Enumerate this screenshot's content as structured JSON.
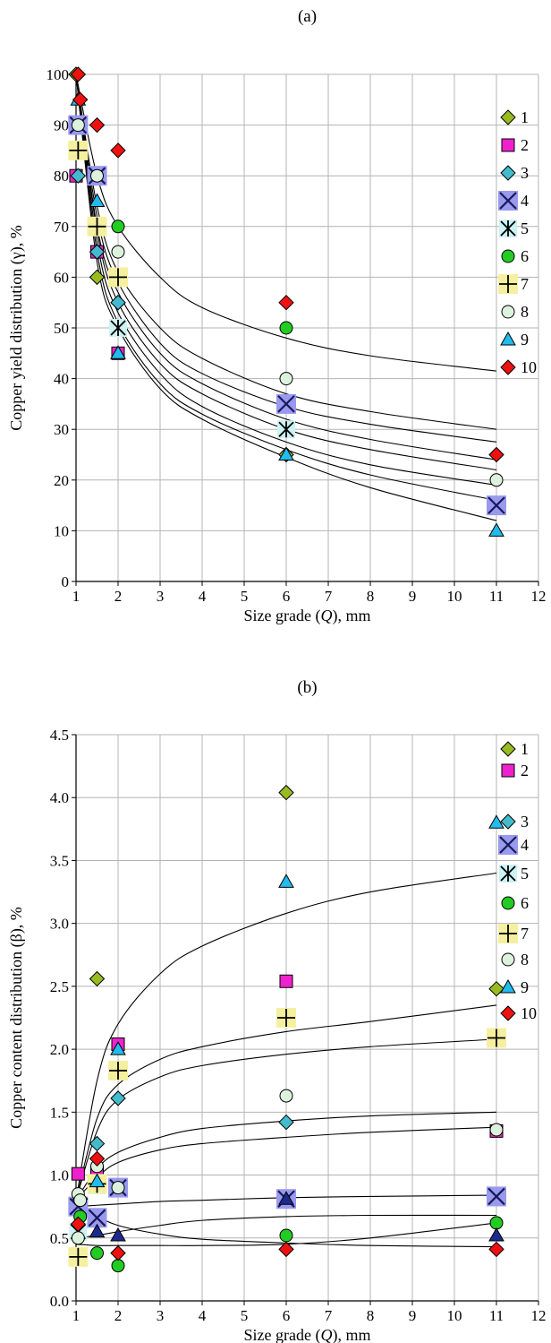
{
  "chart_data": [
    {
      "type": "scatter",
      "title": "(a)",
      "xlabel": "Size grade (Q), mm",
      "ylabel": "Copper yield distribution (γ), %",
      "xlim": [
        1,
        12
      ],
      "ylim": [
        0,
        100
      ],
      "xticks": [
        "1",
        "2",
        "3",
        "4",
        "5",
        "6",
        "7",
        "8",
        "9",
        "10",
        "11",
        "12"
      ],
      "yticks": [
        "0",
        "10",
        "20",
        "30",
        "40",
        "50",
        "60",
        "70",
        "80",
        "90",
        "100"
      ],
      "grid": true,
      "legend_position": "right",
      "series": [
        {
          "name": "1",
          "marker": "diamond",
          "color": "#99bb22",
          "x": [
            1,
            1.5,
            2,
            6
          ],
          "y": [
            100,
            60,
            55,
            25
          ]
        },
        {
          "name": "2",
          "marker": "square",
          "color": "#ee22cc",
          "x": [
            1,
            1.5,
            2,
            11
          ],
          "y": [
            80,
            65,
            45,
            15
          ]
        },
        {
          "name": "3",
          "marker": "diamond",
          "color": "#44bbcc",
          "x": [
            1.05,
            1.5,
            2
          ],
          "y": [
            80,
            65,
            55
          ]
        },
        {
          "name": "4",
          "marker": "x",
          "color": "#9999ee",
          "x": [
            1.05,
            1.5,
            6,
            11
          ],
          "y": [
            90,
            80,
            35,
            15
          ]
        },
        {
          "name": "5",
          "marker": "star",
          "color": "#ccf2f2",
          "x": [
            1.5,
            2,
            6
          ],
          "y": [
            70,
            50,
            30
          ]
        },
        {
          "name": "6",
          "marker": "circle",
          "color": "#22cc22",
          "x": [
            2,
            6
          ],
          "y": [
            70,
            50
          ]
        },
        {
          "name": "7",
          "marker": "plus",
          "color": "#f5f0a0",
          "x": [
            1.05,
            1.5,
            2
          ],
          "y": [
            85,
            70,
            60
          ]
        },
        {
          "name": "8",
          "marker": "circle",
          "color": "#ddf2dd",
          "x": [
            1.05,
            1.5,
            2,
            6,
            11
          ],
          "y": [
            90,
            80,
            65,
            40,
            20
          ]
        },
        {
          "name": "9",
          "marker": "triangle",
          "color": "#22bbee",
          "x": [
            1.05,
            1.5,
            2,
            6,
            11
          ],
          "y": [
            95,
            75,
            45,
            25,
            10
          ]
        },
        {
          "name": "10",
          "marker": "diamond",
          "color": "#ee1111",
          "x": [
            1.05,
            1.1,
            1.5,
            2,
            6,
            11
          ],
          "y": [
            100,
            95,
            90,
            85,
            55,
            25
          ]
        }
      ],
      "fit_curves": [
        [
          [
            1,
            100
          ],
          [
            1.5,
            80
          ],
          [
            2,
            70
          ],
          [
            3,
            60
          ],
          [
            4,
            54
          ],
          [
            6,
            48
          ],
          [
            8,
            44.5
          ],
          [
            11,
            41.5
          ]
        ],
        [
          [
            1,
            100
          ],
          [
            1.5,
            74
          ],
          [
            2,
            61
          ],
          [
            3,
            50
          ],
          [
            4,
            44
          ],
          [
            6,
            37
          ],
          [
            8,
            33.5
          ],
          [
            11,
            30
          ]
        ],
        [
          [
            1,
            100
          ],
          [
            1.5,
            72
          ],
          [
            2,
            59
          ],
          [
            3,
            47
          ],
          [
            4,
            41
          ],
          [
            6,
            34.5
          ],
          [
            8,
            31
          ],
          [
            11,
            27.5
          ]
        ],
        [
          [
            1,
            100
          ],
          [
            1.5,
            70
          ],
          [
            2,
            57
          ],
          [
            3,
            45
          ],
          [
            4,
            39
          ],
          [
            6,
            32
          ],
          [
            8,
            28
          ],
          [
            11,
            24
          ]
        ],
        [
          [
            1,
            100
          ],
          [
            1.5,
            69
          ],
          [
            2,
            55
          ],
          [
            3,
            43
          ],
          [
            4,
            37
          ],
          [
            6,
            30
          ],
          [
            8,
            26
          ],
          [
            11,
            22
          ]
        ],
        [
          [
            1,
            100
          ],
          [
            1.5,
            67
          ],
          [
            2,
            53
          ],
          [
            3,
            41
          ],
          [
            4,
            34.5
          ],
          [
            6,
            27.5
          ],
          [
            8,
            23
          ],
          [
            11,
            19
          ]
        ],
        [
          [
            1,
            100
          ],
          [
            1.5,
            65
          ],
          [
            2,
            51
          ],
          [
            3,
            39
          ],
          [
            4,
            33
          ],
          [
            6,
            26
          ],
          [
            8,
            21
          ],
          [
            11,
            16
          ]
        ],
        [
          [
            1,
            100
          ],
          [
            1.5,
            63
          ],
          [
            2,
            50
          ],
          [
            3,
            38
          ],
          [
            4,
            32
          ],
          [
            6,
            24.5
          ],
          [
            8,
            18.5
          ],
          [
            11,
            12
          ]
        ]
      ]
    },
    {
      "type": "scatter",
      "title": "(b)",
      "xlabel": "Size grade (Q), mm",
      "ylabel": "Copper content distribution (β), %",
      "xlim": [
        1,
        12
      ],
      "ylim": [
        0,
        4.5
      ],
      "xticks": [
        "1",
        "2",
        "3",
        "4",
        "5",
        "6",
        "7",
        "8",
        "9",
        "10",
        "11",
        "12"
      ],
      "yticks": [
        "0.0",
        "0.5",
        "1.0",
        "1.5",
        "2.0",
        "2.5",
        "3.0",
        "3.5",
        "4.0",
        "4.5"
      ],
      "grid": true,
      "legend_position": "right",
      "series": [
        {
          "name": "1",
          "marker": "diamond",
          "color": "#99bb22",
          "x": [
            1.5,
            6,
            11
          ],
          "y": [
            2.56,
            4.04,
            2.48
          ]
        },
        {
          "name": "2",
          "marker": "square",
          "color": "#ee22cc",
          "x": [
            1.05,
            1.5,
            2,
            6,
            11
          ],
          "y": [
            1.01,
            1.02,
            2.04,
            2.54,
            1.35
          ]
        },
        {
          "name": "3",
          "marker": "diamond",
          "color": "#44bbcc",
          "x": [
            1.5,
            2,
            6
          ],
          "y": [
            1.25,
            1.61,
            1.42
          ]
        },
        {
          "name": "4",
          "marker": "x",
          "color": "#9999ee",
          "x": [
            1.05,
            1.5,
            2,
            6,
            11
          ],
          "y": [
            0.75,
            0.66,
            0.9,
            0.81,
            0.83
          ]
        },
        {
          "name": "5",
          "marker": "star",
          "color": "#ccf2f2",
          "x": [
            1.05,
            1.5
          ],
          "y": [
            0.55,
            0.92
          ]
        },
        {
          "name": "6",
          "marker": "circle",
          "color": "#22cc22",
          "x": [
            1.1,
            1.5,
            2,
            6,
            11
          ],
          "y": [
            0.67,
            0.38,
            0.28,
            0.52,
            0.62
          ]
        },
        {
          "name": "7",
          "marker": "plus",
          "color": "#f5f0a0",
          "x": [
            1.05,
            1.5,
            2,
            6,
            11
          ],
          "y": [
            0.35,
            0.93,
            1.83,
            2.25,
            2.09
          ]
        },
        {
          "name": "8",
          "marker": "circle",
          "color": "#ddf2dd",
          "x": [
            1.05,
            1.5,
            2,
            6,
            11
          ],
          "y": [
            0.5,
            1.07,
            0.9,
            1.63,
            1.36
          ]
        },
        {
          "name": "9",
          "marker": "triangle",
          "color": "#22bbee",
          "x": [
            1.5,
            2,
            6,
            11
          ],
          "y": [
            0.95,
            2.0,
            3.33,
            3.8
          ]
        },
        {
          "name": "10",
          "marker": "diamond",
          "color": "#ee1111",
          "x": [
            1.05,
            1.1,
            1.5,
            2,
            6,
            11
          ],
          "y": [
            0.61,
            0.81,
            1.13,
            0.38,
            0.41,
            0.41
          ]
        }
      ],
      "extra_points": [
        {
          "marker": "triangle",
          "color": "#1c2a8c",
          "x": [
            1.5,
            2,
            6,
            11
          ],
          "y": [
            0.55,
            0.52,
            0.81,
            0.52
          ]
        },
        {
          "marker": "circle",
          "color": "#ddf2dd",
          "x": [
            1.05,
            1.1
          ],
          "y": [
            0.85,
            0.8
          ]
        }
      ],
      "fit_curves": [
        [
          [
            1,
            0.8
          ],
          [
            1.5,
            1.75
          ],
          [
            2,
            2.2
          ],
          [
            3,
            2.6
          ],
          [
            4,
            2.82
          ],
          [
            6,
            3.08
          ],
          [
            8,
            3.25
          ],
          [
            11,
            3.4
          ]
        ],
        [
          [
            1,
            0.8
          ],
          [
            1.5,
            1.45
          ],
          [
            2,
            1.72
          ],
          [
            3,
            1.92
          ],
          [
            4,
            2.02
          ],
          [
            6,
            2.14
          ],
          [
            8,
            2.22
          ],
          [
            11,
            2.35
          ]
        ],
        [
          [
            1,
            0.8
          ],
          [
            1.5,
            1.35
          ],
          [
            2,
            1.6
          ],
          [
            3,
            1.78
          ],
          [
            4,
            1.87
          ],
          [
            6,
            1.96
          ],
          [
            8,
            2.02
          ],
          [
            11,
            2.08
          ]
        ],
        [
          [
            1,
            0.8
          ],
          [
            1.5,
            1.05
          ],
          [
            2,
            1.18
          ],
          [
            3,
            1.3
          ],
          [
            4,
            1.37
          ],
          [
            6,
            1.43
          ],
          [
            8,
            1.47
          ],
          [
            11,
            1.5
          ]
        ],
        [
          [
            1,
            0.8
          ],
          [
            1.5,
            0.98
          ],
          [
            2,
            1.1
          ],
          [
            3,
            1.2
          ],
          [
            4,
            1.25
          ],
          [
            6,
            1.3
          ],
          [
            8,
            1.34
          ],
          [
            11,
            1.38
          ]
        ],
        [
          [
            1,
            0.75
          ],
          [
            1.5,
            0.76
          ],
          [
            2,
            0.77
          ],
          [
            3,
            0.79
          ],
          [
            4,
            0.8
          ],
          [
            6,
            0.82
          ],
          [
            8,
            0.83
          ],
          [
            11,
            0.84
          ]
        ],
        [
          [
            1,
            0.5
          ],
          [
            1.5,
            0.52
          ],
          [
            2,
            0.55
          ],
          [
            3,
            0.6
          ],
          [
            4,
            0.64
          ],
          [
            6,
            0.67
          ],
          [
            8,
            0.68
          ],
          [
            11,
            0.68
          ]
        ],
        [
          [
            1,
            0.8
          ],
          [
            1.5,
            0.68
          ],
          [
            2,
            0.6
          ],
          [
            3,
            0.53
          ],
          [
            4,
            0.49
          ],
          [
            6,
            0.46
          ],
          [
            8,
            0.44
          ],
          [
            11,
            0.43
          ]
        ],
        [
          [
            1,
            0.45
          ],
          [
            1.5,
            0.44
          ],
          [
            2,
            0.44
          ],
          [
            3,
            0.44
          ],
          [
            4,
            0.44
          ],
          [
            6,
            0.45
          ],
          [
            8,
            0.5
          ],
          [
            11,
            0.62
          ]
        ]
      ]
    }
  ]
}
